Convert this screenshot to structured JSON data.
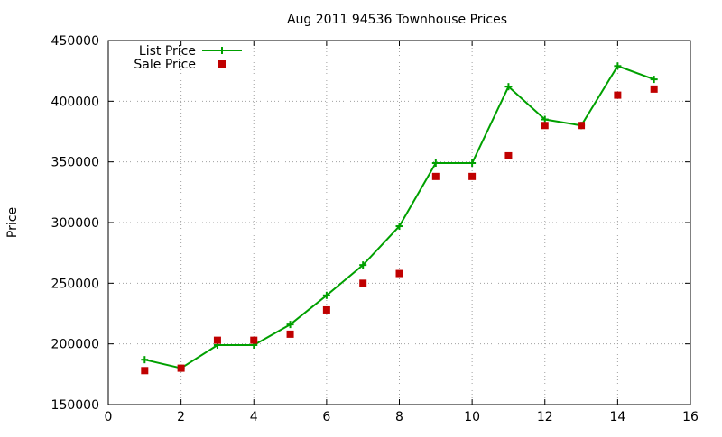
{
  "colors": {
    "list_price": "#00a000",
    "sale_price": "#c00000",
    "grid": "#a0a0a0"
  },
  "chart_data": {
    "type": "line",
    "title": "Aug 2011 94536 Townhouse Prices",
    "xlabel": "",
    "ylabel": "Price",
    "xlim": [
      0,
      16
    ],
    "ylim": [
      150000,
      450000
    ],
    "x_ticks": [
      0,
      2,
      4,
      6,
      8,
      10,
      12,
      14,
      16
    ],
    "y_ticks": [
      150000,
      200000,
      250000,
      300000,
      350000,
      400000,
      450000
    ],
    "grid": true,
    "legend_position": "top-left",
    "series": [
      {
        "name": "List Price",
        "style": "line+cross",
        "x": [
          1,
          2,
          3,
          4,
          5,
          6,
          7,
          8,
          9,
          10,
          11,
          12,
          13,
          14,
          15
        ],
        "y": [
          187000,
          180000,
          199000,
          199000,
          216000,
          240000,
          265000,
          297000,
          349000,
          349000,
          412000,
          385000,
          380000,
          429000,
          418000
        ]
      },
      {
        "name": "Sale Price",
        "style": "square",
        "x": [
          1,
          2,
          3,
          4,
          5,
          6,
          7,
          8,
          9,
          10,
          11,
          12,
          13,
          14,
          15
        ],
        "y": [
          178000,
          180000,
          203000,
          203000,
          208000,
          228000,
          250000,
          258000,
          338000,
          338000,
          355000,
          380000,
          380000,
          405000,
          410000
        ]
      }
    ]
  }
}
